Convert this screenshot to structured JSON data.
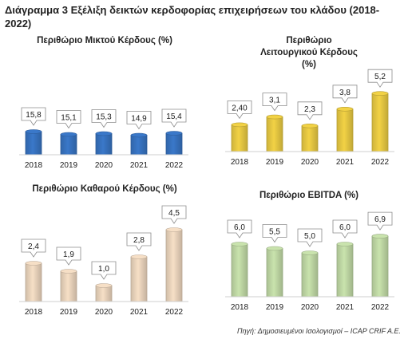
{
  "header": {
    "title": "Διάγραμμα 3 Εξέλιξη δεικτών κερδοφορίας επιχειρήσεων του κλάδου (2018-2022)"
  },
  "source": "Πηγή: Δημοσιευμένοι Ισολογισμοί – ICAP CRIF A.E.",
  "chart_data": [
    {
      "id": "gross",
      "type": "bar",
      "title": "Περιθώριο Μικτού Κέρδους (%)",
      "categories": [
        "2018",
        "2019",
        "2020",
        "2021",
        "2022"
      ],
      "values": [
        15.8,
        15.1,
        15.3,
        14.9,
        15.4
      ],
      "value_labels": [
        "15,8",
        "15,1",
        "15,3",
        "14,9",
        "15,4"
      ],
      "color": "#3a78c9",
      "grid": false
    },
    {
      "id": "operating",
      "type": "bar",
      "title": "Περιθώριο Λειτουργικού Κέρδους (%)",
      "categories": [
        "2018",
        "2019",
        "2020",
        "2021",
        "2022"
      ],
      "values": [
        2.4,
        3.1,
        2.3,
        3.8,
        5.2
      ],
      "value_labels": [
        "2,40",
        "3,1",
        "2,3",
        "3,8",
        "5,2"
      ],
      "color": "#f2d245",
      "grid": false
    },
    {
      "id": "net",
      "type": "bar",
      "title": "Περιθώριο Καθαρού Κέρδους (%)",
      "categories": [
        "2018",
        "2019",
        "2020",
        "2021",
        "2022"
      ],
      "values": [
        2.4,
        1.9,
        1.0,
        2.8,
        4.5
      ],
      "value_labels": [
        "2,4",
        "1,9",
        "1,0",
        "2,8",
        "4,5"
      ],
      "color": "#f6dfc6",
      "grid": false
    },
    {
      "id": "ebitda",
      "type": "bar",
      "title": "Περιθώριο EBITDA (%)",
      "categories": [
        "2018",
        "2019",
        "2020",
        "2021",
        "2022"
      ],
      "values": [
        6.0,
        5.5,
        5.0,
        6.0,
        6.9
      ],
      "value_labels": [
        "6,0",
        "5,5",
        "5,0",
        "6,0",
        "6,9"
      ],
      "color": "#c9e3ad",
      "grid": false
    }
  ]
}
